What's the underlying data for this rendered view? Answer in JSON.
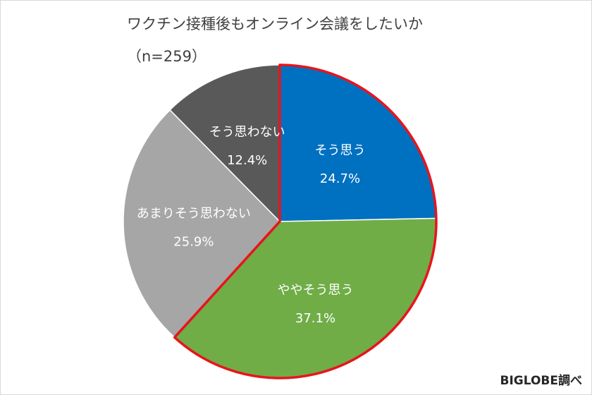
{
  "title": "ワクチン接種後もオンライン会議をしたいか",
  "subtitle": "（n=259）",
  "credit": "BIGLOBE調べ",
  "colors": {
    "highlight_outline": "#e8141c",
    "slice_border": "#ffffff"
  },
  "chart_data": {
    "type": "pie",
    "title": "ワクチン接種後もオンライン会議をしたいか",
    "subtitle": "（n=259）",
    "start_angle": "12 o'clock, clockwise",
    "legend": "none (labels on slices)",
    "highlighted_slices": [
      "そう思う",
      "ややそう思う"
    ],
    "slices": [
      {
        "label": "そう思う",
        "value": 24.7,
        "value_label": "24.7%",
        "color": "#0070c0"
      },
      {
        "label": "ややそう思う",
        "value": 37.1,
        "value_label": "37.1%",
        "color": "#70ad47"
      },
      {
        "label": "あまりそう思わない",
        "value": 25.9,
        "value_label": "25.9%",
        "color": "#a6a6a6"
      },
      {
        "label": "そう思わない",
        "value": 12.4,
        "value_label": "12.4%",
        "color": "#595959"
      }
    ]
  }
}
